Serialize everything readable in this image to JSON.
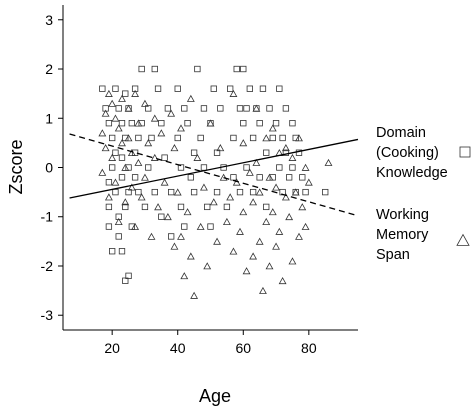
{
  "chart_data": {
    "type": "scatter",
    "xlabel": "Age",
    "ylabel": "Zscore",
    "xlim": [
      5,
      95
    ],
    "ylim": [
      -3.3,
      3.3
    ],
    "x_ticks": [
      20,
      40,
      60,
      80
    ],
    "y_ticks": [
      3,
      2,
      1,
      0,
      -1,
      -2,
      -3
    ],
    "grid": false,
    "legend_position": "right",
    "series": [
      {
        "name": "Domain (Cooking) Knowledge",
        "label_lines": [
          "Domain",
          "(Cooking)",
          "Knowledge"
        ],
        "marker": "square",
        "trend": {
          "style": "solid",
          "x": [
            7,
            95
          ],
          "y": [
            -0.62,
            0.57
          ]
        },
        "points": [
          [
            17,
            1.6
          ],
          [
            18,
            1.2
          ],
          [
            19,
            0.9
          ],
          [
            19,
            -0.3
          ],
          [
            19,
            -0.8
          ],
          [
            19,
            -1.2
          ],
          [
            20,
            0.6
          ],
          [
            20,
            0.0
          ],
          [
            20,
            -1.7
          ],
          [
            21,
            1.6
          ],
          [
            21,
            0.3
          ],
          [
            21,
            -0.5
          ],
          [
            22,
            1.2
          ],
          [
            22,
            -1.0
          ],
          [
            22,
            -1.4
          ],
          [
            23,
            0.9
          ],
          [
            23,
            0.2
          ],
          [
            23,
            -0.2
          ],
          [
            23,
            -1.7
          ],
          [
            24,
            1.5
          ],
          [
            24,
            0.6
          ],
          [
            24,
            -0.8
          ],
          [
            25,
            1.2
          ],
          [
            25,
            0.0
          ],
          [
            25,
            -0.5
          ],
          [
            26,
            0.9
          ],
          [
            26,
            -1.2
          ],
          [
            27,
            1.6
          ],
          [
            27,
            0.3
          ],
          [
            27,
            -0.2
          ],
          [
            24,
            -2.3
          ],
          [
            25,
            -2.2
          ],
          [
            28,
            0.6
          ],
          [
            28,
            -0.5
          ],
          [
            29,
            2.0
          ],
          [
            29,
            0.9
          ],
          [
            30,
            -0.8
          ],
          [
            31,
            1.2
          ],
          [
            31,
            0.0
          ],
          [
            32,
            0.6
          ],
          [
            33,
            2.0
          ],
          [
            33,
            -0.5
          ],
          [
            34,
            1.6
          ],
          [
            35,
            0.9
          ],
          [
            35,
            -1.0
          ],
          [
            36,
            0.2
          ],
          [
            37,
            1.2
          ],
          [
            38,
            -0.5
          ],
          [
            38,
            -1.4
          ],
          [
            40,
            1.6
          ],
          [
            40,
            0.6
          ],
          [
            41,
            0.0
          ],
          [
            41,
            -0.8
          ],
          [
            42,
            1.2
          ],
          [
            42,
            -1.2
          ],
          [
            43,
            0.9
          ],
          [
            44,
            -0.2
          ],
          [
            45,
            0.3
          ],
          [
            45,
            -0.5
          ],
          [
            46,
            2.0
          ],
          [
            47,
            0.6
          ],
          [
            48,
            1.2
          ],
          [
            48,
            0.0
          ],
          [
            49,
            -0.8
          ],
          [
            50,
            0.9
          ],
          [
            50,
            -1.2
          ],
          [
            51,
            1.6
          ],
          [
            52,
            0.3
          ],
          [
            52,
            -0.5
          ],
          [
            53,
            1.2
          ],
          [
            54,
            0.0
          ],
          [
            55,
            -0.8
          ],
          [
            56,
            1.6
          ],
          [
            57,
            0.6
          ],
          [
            57,
            -0.2
          ],
          [
            58,
            2.0
          ],
          [
            59,
            1.2
          ],
          [
            59,
            -0.5
          ],
          [
            60,
            2.0
          ],
          [
            60,
            0.9
          ],
          [
            61,
            1.2
          ],
          [
            61,
            0.0
          ],
          [
            62,
            1.6
          ],
          [
            63,
            0.6
          ],
          [
            63,
            -0.5
          ],
          [
            64,
            1.2
          ],
          [
            65,
            0.9
          ],
          [
            65,
            -0.2
          ],
          [
            66,
            1.6
          ],
          [
            67,
            0.3
          ],
          [
            67,
            -0.8
          ],
          [
            68,
            1.2
          ],
          [
            69,
            0.6
          ],
          [
            69,
            -0.2
          ],
          [
            70,
            0.9
          ],
          [
            71,
            1.6
          ],
          [
            71,
            0.0
          ],
          [
            72,
            0.6
          ],
          [
            72,
            -0.5
          ],
          [
            73,
            1.2
          ],
          [
            73,
            0.3
          ],
          [
            74,
            -0.2
          ],
          [
            75,
            0.9
          ],
          [
            75,
            0.0
          ],
          [
            76,
            0.6
          ],
          [
            76,
            -0.5
          ],
          [
            77,
            0.3
          ],
          [
            78,
            -0.2
          ],
          [
            79,
            -0.5
          ],
          [
            85,
            -0.5
          ]
        ]
      },
      {
        "name": "Working Memory Span",
        "label_lines": [
          "Working",
          "Memory",
          "Span"
        ],
        "marker": "triangle",
        "trend": {
          "style": "dashed",
          "x": [
            7,
            95
          ],
          "y": [
            0.68,
            -0.98
          ]
        },
        "points": [
          [
            17,
            0.7
          ],
          [
            17,
            -0.1
          ],
          [
            18,
            1.1
          ],
          [
            18,
            0.4
          ],
          [
            19,
            1.5
          ],
          [
            19,
            -0.6
          ],
          [
            20,
            1.3
          ],
          [
            20,
            0.2
          ],
          [
            21,
            1.0
          ],
          [
            21,
            -0.3
          ],
          [
            22,
            0.8
          ],
          [
            22,
            -1.1
          ],
          [
            23,
            1.4
          ],
          [
            23,
            0.5
          ],
          [
            24,
            0.0
          ],
          [
            24,
            -0.7
          ],
          [
            25,
            1.2
          ],
          [
            25,
            0.6
          ],
          [
            26,
            0.3
          ],
          [
            26,
            -0.4
          ],
          [
            27,
            1.5
          ],
          [
            27,
            -1.2
          ],
          [
            28,
            0.9
          ],
          [
            28,
            0.1
          ],
          [
            29,
            -0.6
          ],
          [
            30,
            1.3
          ],
          [
            30,
            -0.2
          ],
          [
            31,
            0.5
          ],
          [
            32,
            -1.4
          ],
          [
            33,
            1.0
          ],
          [
            33,
            0.2
          ],
          [
            34,
            -0.8
          ],
          [
            35,
            0.7
          ],
          [
            36,
            -0.3
          ],
          [
            37,
            -1.0
          ],
          [
            38,
            1.1
          ],
          [
            39,
            0.4
          ],
          [
            39,
            -1.6
          ],
          [
            40,
            -0.5
          ],
          [
            41,
            -1.4
          ],
          [
            41,
            0.8
          ],
          [
            42,
            -2.2
          ],
          [
            43,
            -0.9
          ],
          [
            44,
            1.4
          ],
          [
            44,
            -1.8
          ],
          [
            45,
            -2.6
          ],
          [
            46,
            0.2
          ],
          [
            47,
            -1.2
          ],
          [
            48,
            -0.4
          ],
          [
            49,
            -2.0
          ],
          [
            50,
            0.9
          ],
          [
            51,
            -0.7
          ],
          [
            52,
            -1.5
          ],
          [
            53,
            0.4
          ],
          [
            54,
            -0.2
          ],
          [
            55,
            -1.1
          ],
          [
            56,
            -0.6
          ],
          [
            57,
            1.5
          ],
          [
            57,
            -1.7
          ],
          [
            58,
            -0.3
          ],
          [
            59,
            -1.3
          ],
          [
            60,
            0.5
          ],
          [
            60,
            -0.9
          ],
          [
            61,
            -2.1
          ],
          [
            62,
            -0.1
          ],
          [
            63,
            -0.7
          ],
          [
            63,
            -1.8
          ],
          [
            64,
            1.2
          ],
          [
            64,
            0.1
          ],
          [
            65,
            -0.5
          ],
          [
            65,
            -1.5
          ],
          [
            66,
            -2.5
          ],
          [
            67,
            0.6
          ],
          [
            67,
            -1.1
          ],
          [
            68,
            -2.0
          ],
          [
            68,
            -0.2
          ],
          [
            69,
            0.8
          ],
          [
            69,
            -0.9
          ],
          [
            70,
            -1.6
          ],
          [
            70,
            -0.4
          ],
          [
            71,
            0.3
          ],
          [
            71,
            -1.3
          ],
          [
            72,
            -2.3
          ],
          [
            73,
            -0.6
          ],
          [
            73,
            0.4
          ],
          [
            74,
            -1.0
          ],
          [
            75,
            -1.9
          ],
          [
            75,
            0.2
          ],
          [
            76,
            -0.5
          ],
          [
            77,
            -1.4
          ],
          [
            77,
            0.6
          ],
          [
            78,
            -0.8
          ],
          [
            79,
            0.0
          ],
          [
            79,
            -1.2
          ],
          [
            80,
            -0.3
          ],
          [
            86,
            0.1
          ]
        ]
      }
    ]
  }
}
